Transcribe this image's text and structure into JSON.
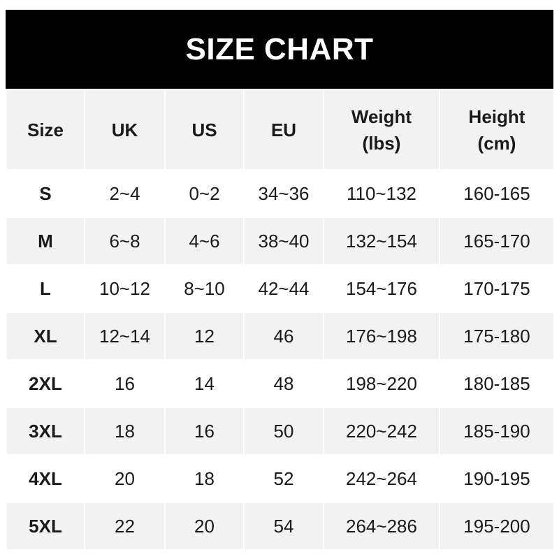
{
  "title": "SIZE CHART",
  "chart_data": {
    "type": "table",
    "title": "SIZE CHART",
    "columns": [
      "Size",
      "UK",
      "US",
      "EU",
      "Weight (lbs)",
      "Height (cm)"
    ],
    "header_lines": [
      [
        "Size"
      ],
      [
        "UK"
      ],
      [
        "US"
      ],
      [
        "EU"
      ],
      [
        "Weight",
        "(lbs)"
      ],
      [
        "Height",
        "(cm)"
      ]
    ],
    "rows": [
      [
        "S",
        "2~4",
        "0~2",
        "34~36",
        "110~132",
        "160-165"
      ],
      [
        "M",
        "6~8",
        "4~6",
        "38~40",
        "132~154",
        "165-170"
      ],
      [
        "L",
        "10~12",
        "8~10",
        "42~44",
        "154~176",
        "170-175"
      ],
      [
        "XL",
        "12~14",
        "12",
        "46",
        "176~198",
        "175-180"
      ],
      [
        "2XL",
        "16",
        "14",
        "48",
        "198~220",
        "180-185"
      ],
      [
        "3XL",
        "18",
        "16",
        "50",
        "220~242",
        "185-190"
      ],
      [
        "4XL",
        "20",
        "18",
        "52",
        "242~264",
        "190-195"
      ],
      [
        "5XL",
        "22",
        "20",
        "54",
        "264~286",
        "195-200"
      ]
    ]
  },
  "colors": {
    "title_bg": "#000000",
    "title_text": "#ffffff",
    "header_bg": "#f2f2f2",
    "stripe_bg": "#f2f2f2"
  }
}
